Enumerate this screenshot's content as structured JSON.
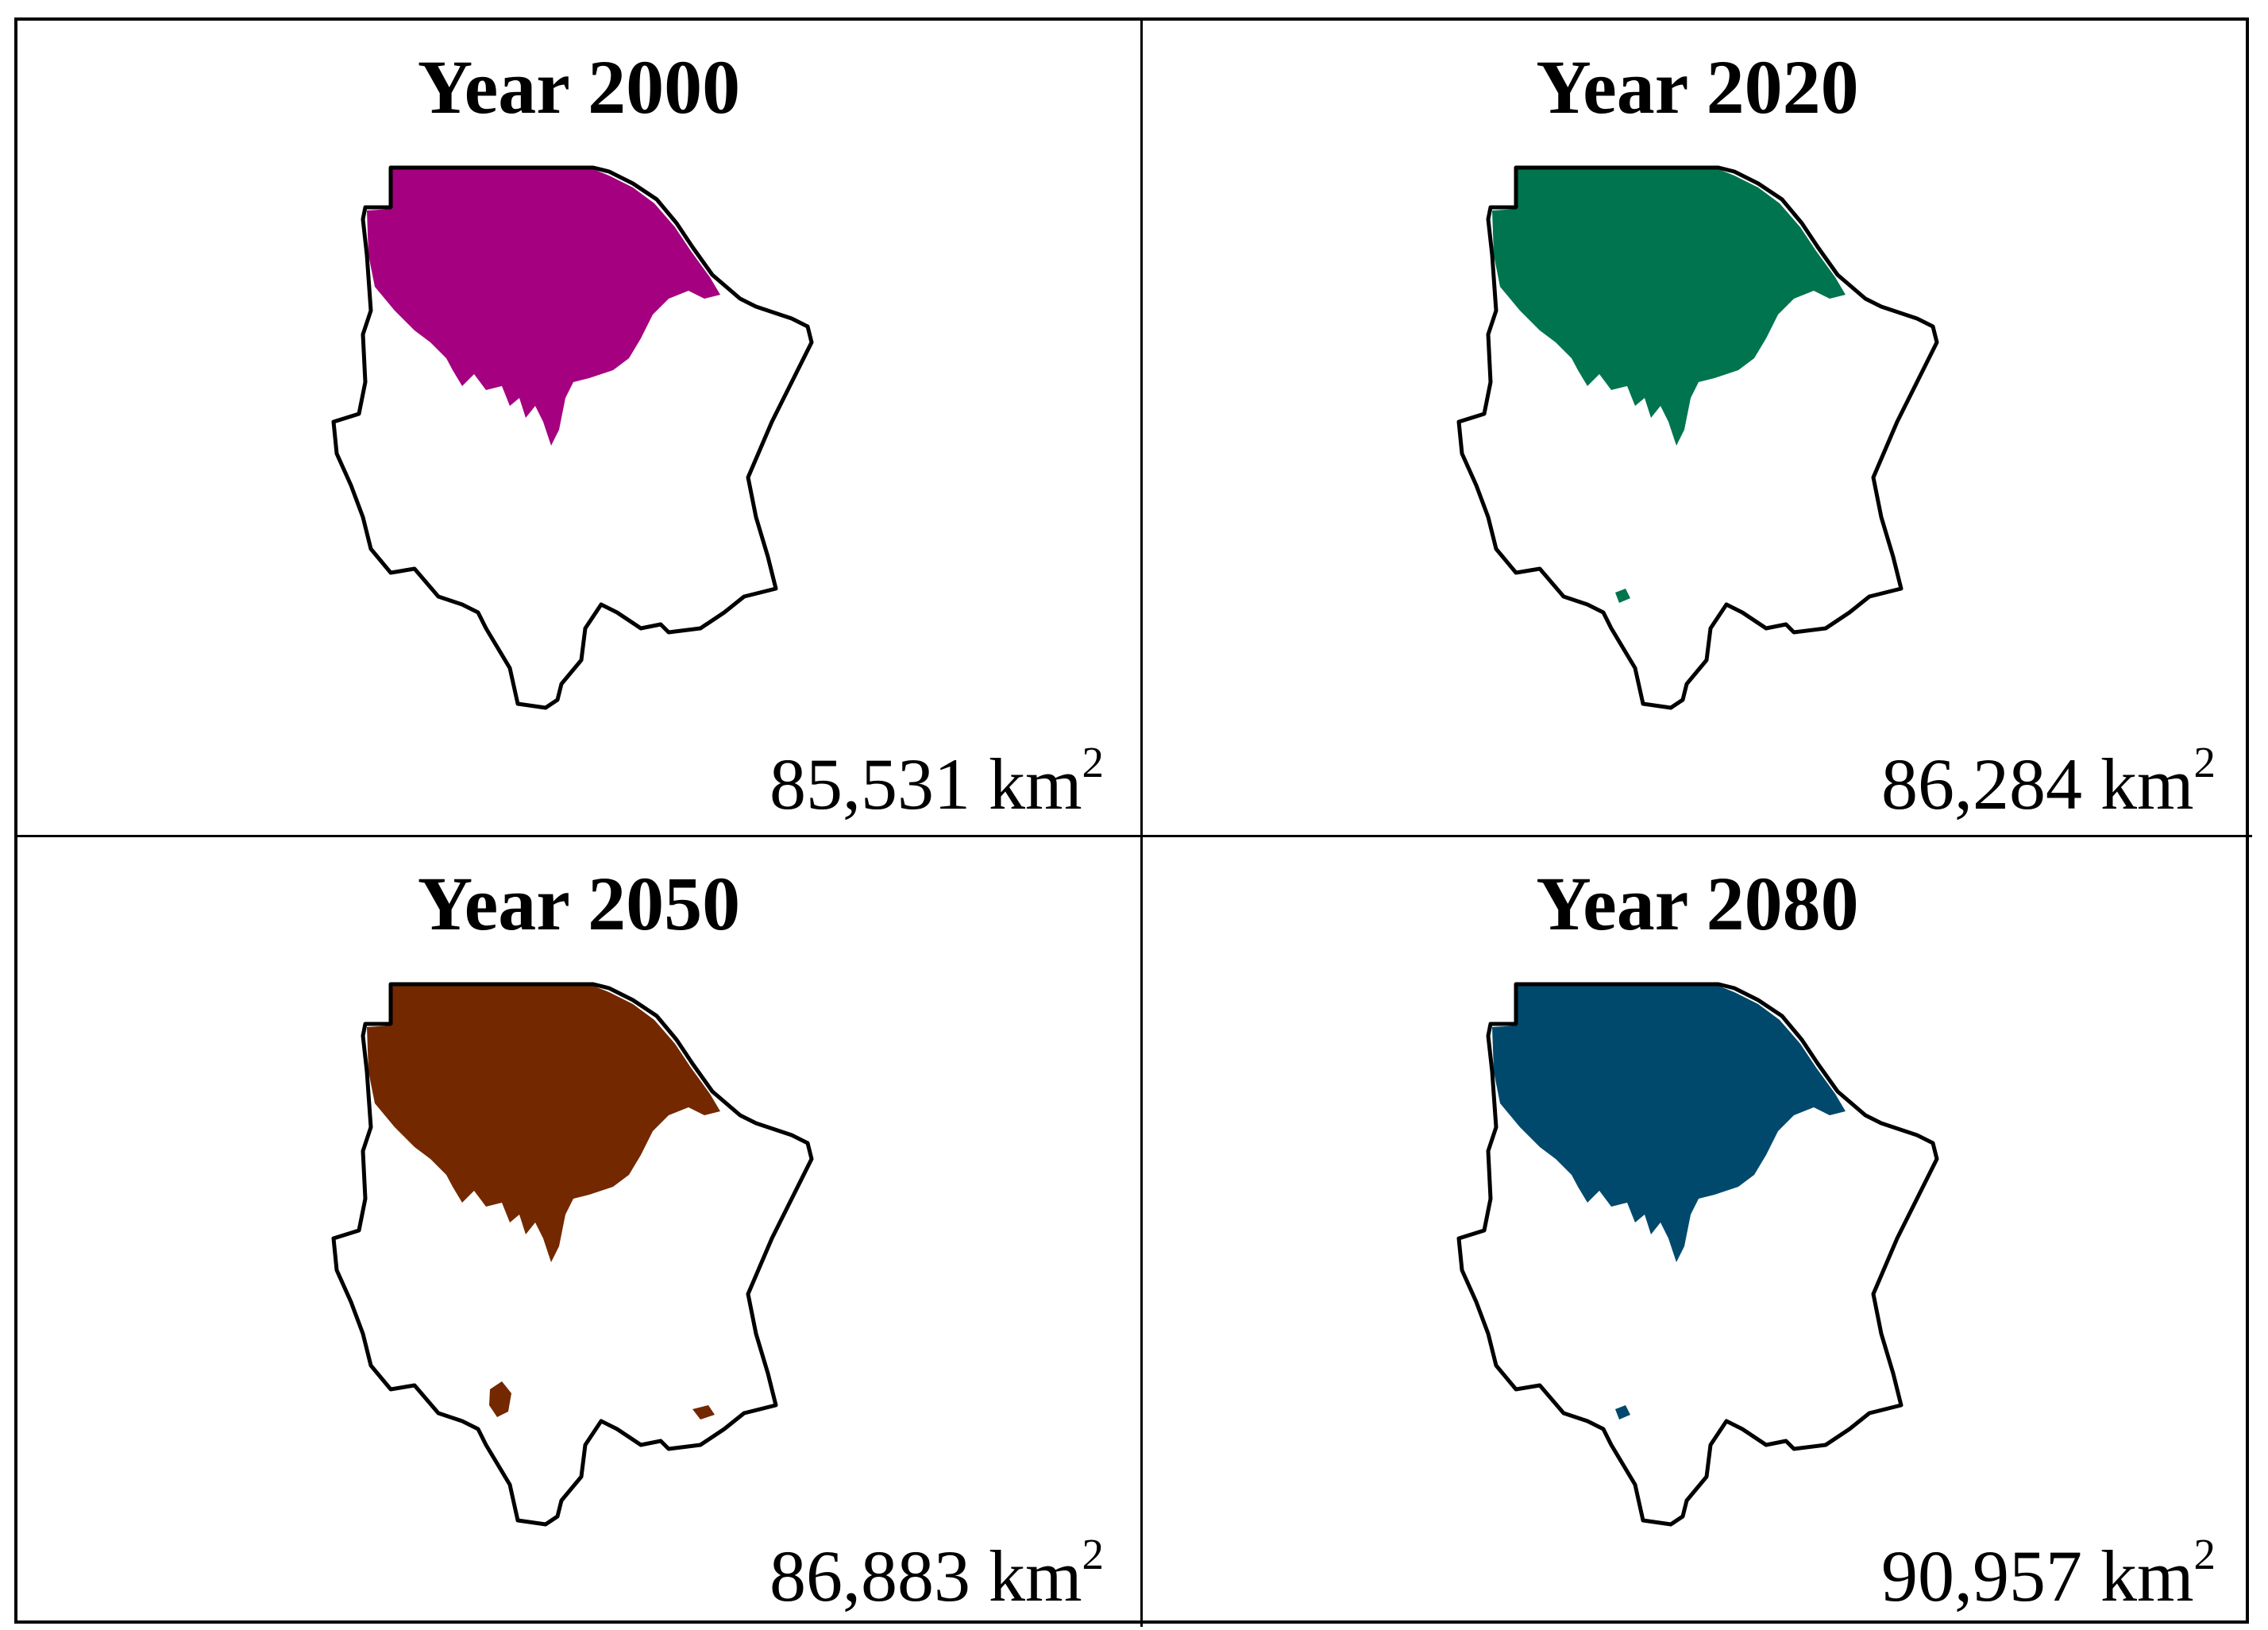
{
  "panels": [
    {
      "year_label": "Year 2000",
      "area_value": "85,531",
      "area_unit": "km",
      "area_exponent": "2",
      "fill_color": "#a4007f"
    },
    {
      "year_label": "Year 2020",
      "area_value": "86,284",
      "area_unit": "km",
      "area_exponent": "2",
      "fill_color": "#00744e"
    },
    {
      "year_label": "Year 2050",
      "area_value": "86,883",
      "area_unit": "km",
      "area_exponent": "2",
      "fill_color": "#732800"
    },
    {
      "year_label": "Year 2080",
      "area_value": "90,957",
      "area_unit": "km",
      "area_exponent": "2",
      "fill_color": "#00496d"
    }
  ]
}
